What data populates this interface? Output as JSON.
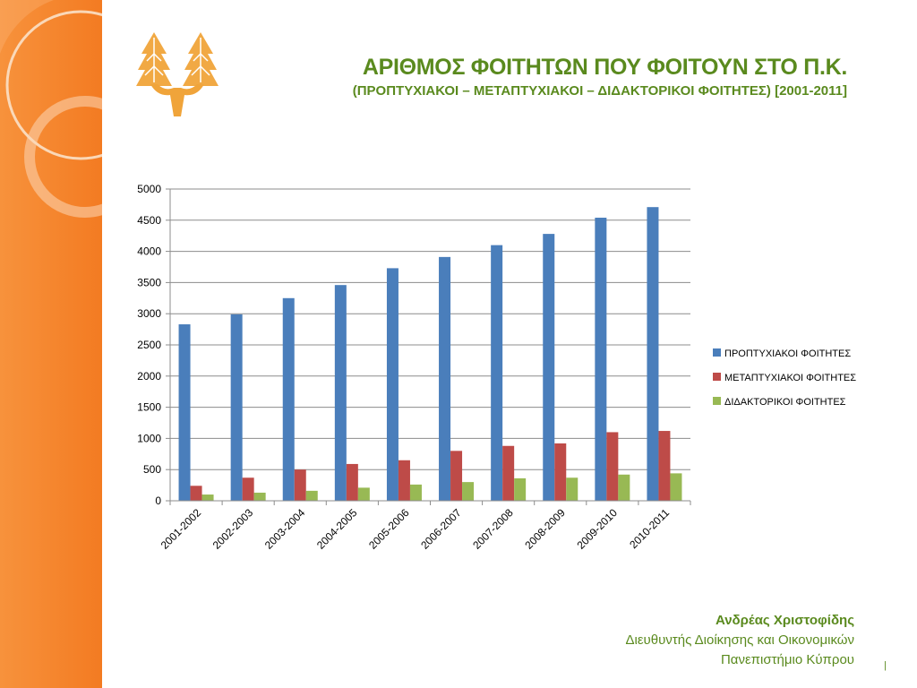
{
  "header": {
    "title": "ΑΡΙΘΜΟΣ ΦΟΙΤΗΤΩΝ ΠΟΥ ΦΟΙΤΟΥΝ ΣΤΟ Π.Κ.",
    "subtitle": "(ΠΡΟΠΤΥΧΙΑΚΟΙ – ΜΕΤΑΠΤΥΧΙΑΚΟΙ – ΔΙΔΑΚΤΟΡΙΚΟΙ ΦΟΙΤΗΤΕΣ) [2001-2011]"
  },
  "footer": {
    "name": "Ανδρέας Χριστοφίδης",
    "role": "Διευθυντής Διοίκησης και Οικονομικών",
    "org": "Πανεπιστήμιο Κύπρου",
    "page": "|"
  },
  "colors": {
    "sidebar": "#f5812a",
    "accent_text": "#5a8a1e",
    "logo": "#f0a43a"
  },
  "chart_data": {
    "type": "bar",
    "categories": [
      "2001-2002",
      "2002-2003",
      "2003-2004",
      "2004-2005",
      "2005-2006",
      "2006-2007",
      "2007-2008",
      "2008-2009",
      "2009-2010",
      "2010-2011"
    ],
    "series": [
      {
        "name": "ΠΡΟΠΤΥΧΙΑΚΟΙ ΦΟΙΤΗΤΕΣ",
        "color": "#4a7ebb",
        "values": [
          2830,
          2990,
          3250,
          3460,
          3730,
          3910,
          4100,
          4280,
          4540,
          4710
        ]
      },
      {
        "name": "ΜΕΤΑΠΤΥΧΙΑΚΟΙ ΦΟΙΤΗΤΕΣ",
        "color": "#be4b48",
        "values": [
          240,
          370,
          500,
          590,
          650,
          800,
          880,
          920,
          1100,
          1120
        ]
      },
      {
        "name": "ΔΙΔΑΚΤΟΡΙΚΟΙ ΦΟΙΤΗΤΕΣ",
        "color": "#98b954",
        "values": [
          100,
          130,
          160,
          210,
          260,
          300,
          360,
          370,
          420,
          440
        ]
      }
    ],
    "ylim": [
      0,
      5000
    ],
    "yticks": [
      "0",
      "500",
      "1000",
      "1500",
      "2000",
      "2500",
      "3000",
      "3500",
      "4000",
      "4500",
      "5000"
    ],
    "grid": true,
    "legend": "right"
  }
}
